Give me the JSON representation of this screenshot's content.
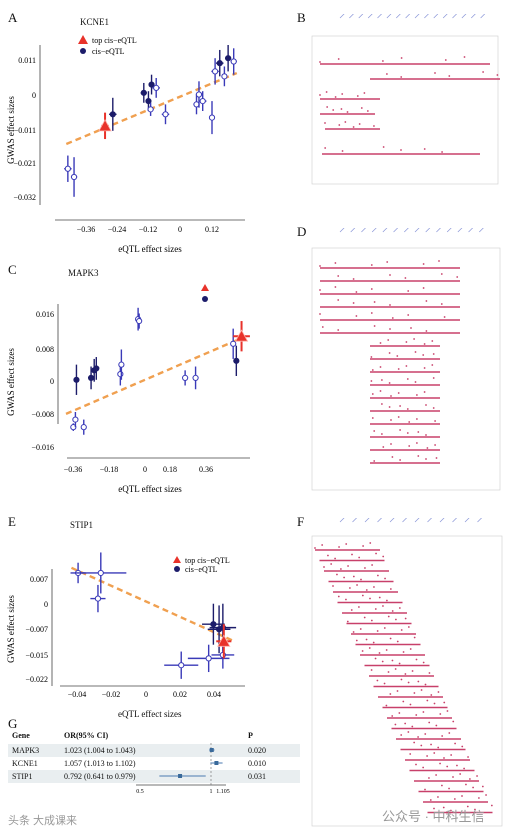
{
  "panels": {
    "A": {
      "letter": "A",
      "gene": "KCNE1",
      "legend": {
        "top": "top cis−eQTL",
        "cis": "cis−eQTL"
      },
      "xlabel": "eQTL effect sizes",
      "ylabel": "GWAS effect sizes",
      "xticks": [
        "−0.36",
        "−0.24",
        "−0.12",
        "0",
        "0.12"
      ],
      "yticks": [
        "0.011",
        "0",
        "−0.011",
        "−0.021",
        "−0.032"
      ]
    },
    "C": {
      "letter": "C",
      "gene": "MAPK3",
      "xlabel": "eQTL effect sizes",
      "ylabel": "GWAS effect sizes",
      "xticks": [
        "−0.36",
        "−0.18",
        "0",
        "0.18",
        "0.36"
      ],
      "yticks": [
        "0.016",
        "0.008",
        "0",
        "−0.008",
        "−0.016"
      ]
    },
    "E": {
      "letter": "E",
      "gene": "STIP1",
      "legend": {
        "top": "top cis−eQTL",
        "cis": "cis−eQTL"
      },
      "xlabel": "eQTL effect sizes",
      "ylabel": "GWAS effect sizes",
      "xticks": [
        "−0.04",
        "−0.02",
        "0",
        "0.02",
        "0.04"
      ],
      "yticks": [
        "0.007",
        "0",
        "−0.007",
        "−0.015",
        "−0.022"
      ]
    },
    "B": {
      "letter": "B"
    },
    "D": {
      "letter": "D"
    },
    "F": {
      "letter": "F"
    }
  },
  "forest": {
    "letter": "G",
    "headers": {
      "gene": "Gene",
      "or": "OR(95% CI)",
      "p": "P"
    },
    "rows": [
      {
        "gene": "MAPK3",
        "or_text": "1.023 (1.004 to 1.043)",
        "p": "0.020",
        "or": 1.023,
        "lo": 1.004,
        "hi": 1.043
      },
      {
        "gene": "KCNE1",
        "or_text": "1.057 (1.013 to 1.102)",
        "p": "0.010",
        "or": 1.057,
        "lo": 1.013,
        "hi": 1.102
      },
      {
        "gene": "STIP1",
        "or_text": "0.792 (0.641 to 0.979)",
        "p": "0.031",
        "or": 0.792,
        "lo": 0.641,
        "hi": 0.979
      }
    ],
    "xticks": [
      "0.5",
      "1",
      "1.105"
    ]
  },
  "watermark": {
    "left": "头条 大成课来",
    "right": "公众号 · 中科生信"
  },
  "chart_data": [
    {
      "type": "scatter",
      "title": "KCNE1",
      "xlabel": "eQTL effect sizes",
      "ylabel": "GWAS effect sizes",
      "xlim": [
        -0.4,
        0.2
      ],
      "ylim": [
        -0.034,
        0.016
      ],
      "top": {
        "x": -0.245,
        "y": -0.0085,
        "xerr": 0.012,
        "yerr": 0.004
      },
      "points": [
        {
          "x": -0.365,
          "y": -0.0215,
          "xerr": 0.012,
          "yerr": 0.004,
          "hollow": true
        },
        {
          "x": -0.345,
          "y": -0.024,
          "xerr": 0.01,
          "yerr": 0.006,
          "hollow": true
        },
        {
          "x": -0.22,
          "y": -0.005,
          "xerr": 0.012,
          "yerr": 0.005,
          "hollow": false
        },
        {
          "x": -0.12,
          "y": 0.0015,
          "xerr": 0.01,
          "yerr": 0.003,
          "hollow": false
        },
        {
          "x": -0.105,
          "y": -0.001,
          "xerr": 0.008,
          "yerr": 0.003,
          "hollow": false
        },
        {
          "x": -0.098,
          "y": -0.0035,
          "xerr": 0.01,
          "yerr": 0.002,
          "hollow": true
        },
        {
          "x": -0.095,
          "y": 0.004,
          "xerr": 0.008,
          "yerr": 0.003,
          "hollow": false
        },
        {
          "x": -0.08,
          "y": 0.003,
          "xerr": 0.012,
          "yerr": 0.003,
          "hollow": true
        },
        {
          "x": -0.05,
          "y": -0.005,
          "xerr": 0.012,
          "yerr": 0.003,
          "hollow": true
        },
        {
          "x": 0.05,
          "y": -0.002,
          "xerr": 0.01,
          "yerr": 0.003,
          "hollow": true
        },
        {
          "x": 0.058,
          "y": 0.001,
          "xerr": 0.01,
          "yerr": 0.004,
          "hollow": true
        },
        {
          "x": 0.07,
          "y": -0.001,
          "xerr": 0.012,
          "yerr": 0.003,
          "hollow": true
        },
        {
          "x": 0.1,
          "y": -0.006,
          "xerr": 0.008,
          "yerr": 0.005,
          "hollow": true
        },
        {
          "x": 0.11,
          "y": 0.008,
          "xerr": 0.012,
          "yerr": 0.004,
          "hollow": true
        },
        {
          "x": 0.125,
          "y": 0.0105,
          "xerr": 0.012,
          "yerr": 0.004,
          "hollow": false
        },
        {
          "x": 0.14,
          "y": 0.0065,
          "xerr": 0.008,
          "yerr": 0.003,
          "hollow": true
        },
        {
          "x": 0.152,
          "y": 0.012,
          "xerr": 0.01,
          "yerr": 0.004,
          "hollow": false
        },
        {
          "x": 0.17,
          "y": 0.011,
          "xerr": 0.01,
          "yerr": 0.004,
          "hollow": true
        }
      ],
      "trend": [
        {
          "x": -0.37,
          "y": -0.014
        },
        {
          "x": 0.18,
          "y": 0.0075
        }
      ]
    },
    {
      "type": "scatter",
      "title": "MAPK3",
      "xlabel": "eQTL effect sizes",
      "ylabel": "GWAS effect sizes",
      "xlim": [
        -0.42,
        0.47
      ],
      "ylim": [
        -0.018,
        0.02
      ],
      "top": {
        "x": 0.42,
        "y": 0.0115,
        "xerr": 0.04,
        "yerr": 0.004
      },
      "points": [
        {
          "x": -0.385,
          "y": -0.0125,
          "xerr": 0.01,
          "yerr": 0.001,
          "hollow": true
        },
        {
          "x": -0.375,
          "y": -0.0105,
          "xerr": 0.01,
          "yerr": 0.002,
          "hollow": true
        },
        {
          "x": -0.37,
          "y": 0.0,
          "xerr": 0.01,
          "yerr": 0.004,
          "hollow": false
        },
        {
          "x": -0.335,
          "y": -0.0125,
          "xerr": 0.01,
          "yerr": 0.002,
          "hollow": true
        },
        {
          "x": -0.3,
          "y": 0.0005,
          "xerr": 0.01,
          "yerr": 0.003,
          "hollow": false
        },
        {
          "x": -0.285,
          "y": 0.0025,
          "xerr": 0.01,
          "yerr": 0.003,
          "hollow": false
        },
        {
          "x": -0.275,
          "y": 0.003,
          "xerr": 0.01,
          "yerr": 0.003,
          "hollow": false
        },
        {
          "x": -0.16,
          "y": 0.0015,
          "xerr": 0.01,
          "yerr": 0.003,
          "hollow": true
        },
        {
          "x": -0.155,
          "y": 0.004,
          "xerr": 0.01,
          "yerr": 0.004,
          "hollow": true
        },
        {
          "x": -0.075,
          "y": 0.016,
          "xerr": 0.012,
          "yerr": 0.003,
          "hollow": true
        },
        {
          "x": -0.07,
          "y": 0.0155,
          "xerr": 0.01,
          "yerr": 0.002,
          "hollow": true
        },
        {
          "x": 0.15,
          "y": 0.0005,
          "xerr": 0.012,
          "yerr": 0.002,
          "hollow": true
        },
        {
          "x": 0.2,
          "y": 0.0005,
          "xerr": 0.01,
          "yerr": 0.003,
          "hollow": true
        },
        {
          "x": 0.38,
          "y": 0.0095,
          "xerr": 0.012,
          "yerr": 0.004,
          "hollow": true
        },
        {
          "x": 0.395,
          "y": 0.005,
          "xerr": 0.01,
          "yerr": 0.004,
          "hollow": false
        }
      ],
      "trend": [
        {
          "x": -0.42,
          "y": -0.009
        },
        {
          "x": 0.42,
          "y": 0.011
        }
      ]
    },
    {
      "type": "scatter",
      "title": "STIP1",
      "xlabel": "eQTL effect sizes",
      "ylabel": "GWAS effect sizes",
      "xlim": [
        -0.045,
        0.048
      ],
      "ylim": [
        -0.023,
        0.013
      ],
      "top": {
        "x": 0.0405,
        "y": -0.0105,
        "xerr": 0.004,
        "yerr": 0.005
      },
      "points": [
        {
          "x": -0.0365,
          "y": 0.0095,
          "xerr": 0.004,
          "yerr": 0.003,
          "hollow": true
        },
        {
          "x": -0.0245,
          "y": 0.0095,
          "xerr": 0.0135,
          "yerr": 0.006,
          "hollow": true
        },
        {
          "x": -0.026,
          "y": 0.002,
          "xerr": 0.004,
          "yerr": 0.004,
          "hollow": true
        },
        {
          "x": 0.038,
          "y": -0.007,
          "xerr": 0.006,
          "yerr": 0.007,
          "hollow": false
        },
        {
          "x": 0.04,
          "y": -0.0065,
          "xerr": 0.007,
          "yerr": 0.007,
          "hollow": false
        },
        {
          "x": 0.035,
          "y": -0.0055,
          "xerr": 0.006,
          "yerr": 0.006,
          "hollow": false
        },
        {
          "x": 0.018,
          "y": -0.0175,
          "xerr": 0.009,
          "yerr": 0.004,
          "hollow": true
        },
        {
          "x": 0.0325,
          "y": -0.0155,
          "xerr": 0.011,
          "yerr": 0.004,
          "hollow": true
        },
        {
          "x": 0.04,
          "y": -0.0145,
          "xerr": 0.006,
          "yerr": 0.004,
          "hollow": true
        }
      ],
      "trend": [
        {
          "x": -0.04,
          "y": 0.011
        },
        {
          "x": 0.046,
          "y": -0.0105
        }
      ]
    }
  ],
  "colors": {
    "trend": "#f0a050",
    "top": "#e8322a",
    "cis": "#1c1c6a",
    "hollow": "#3a3ab8",
    "track": "#c8406a",
    "link": "#8a96d8"
  }
}
